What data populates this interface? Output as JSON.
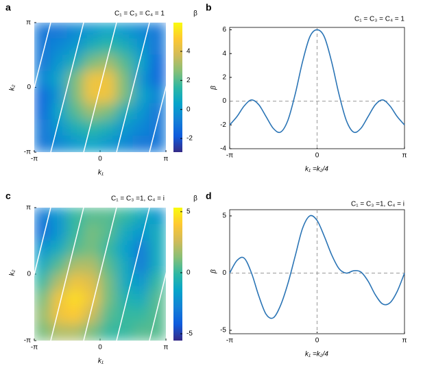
{
  "chart_data": [
    {
      "type": "heatmap",
      "panel": "a",
      "title": "C₁ = C₃ = C₄ = 1",
      "xlabel": "k₁",
      "ylabel": "k₂",
      "colorbar_label": "β",
      "xlim": [
        -3.14159,
        3.14159
      ],
      "ylim": [
        -3.14159,
        3.14159
      ],
      "xticks": [
        {
          "value": -3.14159,
          "label": "-π"
        },
        0,
        {
          "value": 3.14159,
          "label": "π"
        }
      ],
      "yticks": [
        {
          "value": -3.14159,
          "label": "-π"
        },
        0,
        {
          "value": 3.14159,
          "label": "π"
        }
      ],
      "clim": [
        -2.94,
        5.98
      ],
      "cticks": [
        -2,
        0,
        2,
        4
      ],
      "colormap": [
        "#352a87",
        "#0f5cdd",
        "#1481d6",
        "#06a4ca",
        "#2eb7a4",
        "#87bf77",
        "#d1bb59",
        "#fec832",
        "#f9fb0e"
      ],
      "z": [
        [
          -1,
          -1,
          -0.5,
          0,
          0.5,
          0,
          -0.5,
          -1
        ],
        [
          -1,
          -0.5,
          0,
          1,
          1.5,
          1,
          0,
          -1
        ],
        [
          -1,
          0,
          1,
          2.5,
          3,
          2,
          0.5,
          -1.5
        ],
        [
          -0.5,
          0.5,
          2.5,
          4.5,
          4.5,
          2.5,
          0,
          -1.5
        ],
        [
          -1.5,
          0,
          2.5,
          4.5,
          4.5,
          2.5,
          0.5,
          -0.5
        ],
        [
          -1.5,
          0.5,
          2,
          3,
          2.5,
          1,
          0,
          -1
        ],
        [
          -1,
          0,
          1,
          1.5,
          1,
          0,
          -0.5,
          -1
        ],
        [
          -1,
          -0.5,
          0,
          0.5,
          0,
          -0.5,
          -1,
          -1
        ]
      ],
      "guide_lines": {
        "slope": 4,
        "k1_at_zero": [
          -3.14159,
          -1.5708,
          0,
          1.5708,
          3.14159
        ],
        "color": "#ffffff"
      }
    },
    {
      "type": "line",
      "panel": "b",
      "title": "C₁ = C₃ = C₄ = 1",
      "xlabel": "k₁ =k₂/4",
      "ylabel": "β",
      "xlim": [
        -3.14159,
        3.14159
      ],
      "ylim": [
        -4,
        6.2
      ],
      "xticks": [
        {
          "value": -3.14159,
          "label": "-π"
        },
        0,
        {
          "value": 3.14159,
          "label": "π"
        }
      ],
      "yticks": [
        -4,
        -2,
        0,
        2,
        4,
        6
      ],
      "color": "#2a74b5",
      "x": [
        -3.1416,
        -2.8798,
        -2.618,
        -2.3562,
        -2.0944,
        -1.8326,
        -1.5708,
        -1.309,
        -1.0472,
        -0.7854,
        -0.5236,
        -0.2618,
        0,
        0.2618,
        0.5236,
        0.7854,
        1.0472,
        1.309,
        1.5708,
        1.8326,
        2.0944,
        2.3562,
        2.618,
        2.8798,
        3.1416
      ],
      "values": [
        -2,
        -1.3,
        -0.4,
        0.1,
        -0.3,
        -1.3,
        -2.3,
        -2.6,
        -1.6,
        0.6,
        3.3,
        5.4,
        6.0,
        5.4,
        3.3,
        0.6,
        -1.6,
        -2.6,
        -2.3,
        -1.3,
        -0.3,
        0.1,
        -0.4,
        -1.3,
        -2
      ]
    },
    {
      "type": "heatmap",
      "panel": "c",
      "title": "C₁ = C₃ =1, C₄ = i",
      "xlabel": "k₁",
      "ylabel": "k₂",
      "colorbar_label": "β",
      "xlim": [
        -3.14159,
        3.14159
      ],
      "ylim": [
        -3.14159,
        3.14159
      ],
      "xticks": [
        {
          "value": -3.14159,
          "label": "-π"
        },
        0,
        {
          "value": 3.14159,
          "label": "π"
        }
      ],
      "yticks": [
        {
          "value": -3.14159,
          "label": "-π"
        },
        0,
        {
          "value": 3.14159,
          "label": "π"
        }
      ],
      "clim": [
        -5.56,
        5.33
      ],
      "cticks": [
        -5,
        0,
        5
      ],
      "colormap": [
        "#352a87",
        "#0f5cdd",
        "#1481d6",
        "#06a4ca",
        "#2eb7a4",
        "#87bf77",
        "#d1bb59",
        "#fec832",
        "#f9fb0e"
      ],
      "z": [
        [
          -3,
          -2,
          0,
          0.5,
          0.5,
          0,
          -1,
          -2
        ],
        [
          -3.5,
          -2,
          0,
          1,
          0.5,
          -1,
          -2,
          -1
        ],
        [
          -2,
          -1,
          0.5,
          1,
          0,
          -1.5,
          -3,
          -1
        ],
        [
          -1,
          0.5,
          2,
          2,
          0.5,
          -1,
          -3,
          -1
        ],
        [
          0,
          2,
          3.5,
          3,
          1,
          -1,
          -2,
          0
        ],
        [
          1,
          3.5,
          4.5,
          3.5,
          1,
          -0.5,
          -1,
          0.5
        ],
        [
          1.5,
          3.5,
          4,
          2.5,
          0.5,
          0,
          0,
          0.5
        ],
        [
          1,
          2,
          2,
          1,
          0,
          0,
          0.5,
          0.5
        ]
      ],
      "guide_lines": {
        "slope": 4,
        "k1_at_zero": [
          -3.14159,
          -1.5708,
          0,
          1.5708,
          3.14159
        ],
        "color": "#ffffff"
      }
    },
    {
      "type": "line",
      "panel": "d",
      "title": "C₁ = C₃ =1, C₄ = i",
      "xlabel": "k₁ =k₂/4",
      "ylabel": "β",
      "xlim": [
        -3.14159,
        3.14159
      ],
      "ylim": [
        -5.3,
        5.54
      ],
      "xticks": [
        {
          "value": -3.14159,
          "label": "-π"
        },
        0,
        {
          "value": 3.14159,
          "label": "π"
        }
      ],
      "yticks": [
        -5,
        0,
        5
      ],
      "color": "#2a74b5",
      "x": [
        -3.1416,
        -2.8798,
        -2.618,
        -2.3562,
        -2.0944,
        -1.8326,
        -1.5708,
        -1.309,
        -1.0472,
        -0.7854,
        -0.5236,
        -0.2618,
        0,
        0.2618,
        0.5236,
        0.7854,
        1.0472,
        1.309,
        1.5708,
        1.8326,
        2.0944,
        2.3562,
        2.618,
        2.8798,
        3.1416
      ],
      "values": [
        0,
        1.1,
        1.3,
        0,
        -2.0,
        -3.6,
        -3.9,
        -2.8,
        -0.9,
        1.5,
        3.9,
        5.0,
        4.6,
        3.2,
        1.6,
        0.4,
        0,
        0.2,
        0.1,
        -0.7,
        -1.9,
        -2.7,
        -2.6,
        -1.6,
        0
      ]
    }
  ]
}
